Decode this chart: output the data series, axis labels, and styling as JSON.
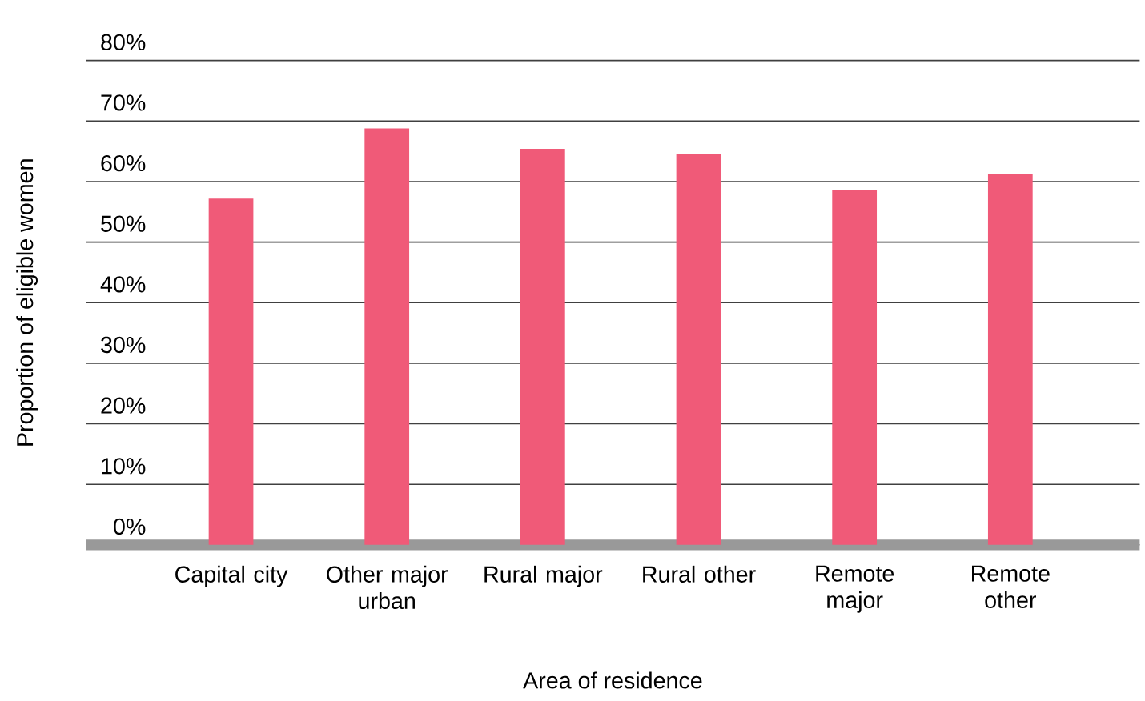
{
  "chart_data": {
    "type": "bar",
    "xlabel": "Area of residence",
    "ylabel": "Proportion of eligible women",
    "categories": [
      "Capital city",
      "Other major urban",
      "Rural major",
      "Rural other",
      "Remote major",
      "Remote other"
    ],
    "values": [
      57.2,
      68.8,
      65.4,
      64.6,
      58.6,
      61.2
    ],
    "color": "#f05a78",
    "ylim": [
      0,
      80
    ],
    "yticks": [
      {
        "value": 0,
        "label": "0%"
      },
      {
        "value": 10,
        "label": "10%"
      },
      {
        "value": 20,
        "label": "20%"
      },
      {
        "value": 30,
        "label": "30%"
      },
      {
        "value": 40,
        "label": "40%"
      },
      {
        "value": 50,
        "label": "50%"
      },
      {
        "value": 60,
        "label": "60%"
      },
      {
        "value": 70,
        "label": "70%"
      },
      {
        "value": 80,
        "label": "80%"
      }
    ],
    "grid": "y"
  }
}
